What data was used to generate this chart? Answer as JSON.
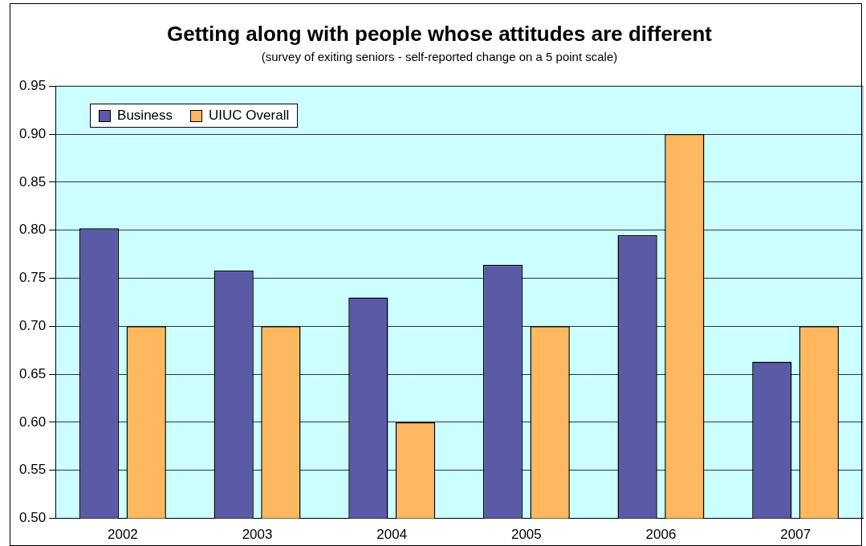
{
  "chart_data": {
    "type": "bar",
    "title": "Getting along with people whose attitudes are different",
    "subtitle": "(survey of exiting seniors - self-reported change on a 5 point scale)",
    "categories": [
      "2002",
      "2003",
      "2004",
      "2005",
      "2006",
      "2007"
    ],
    "series": [
      {
        "name": "Business",
        "color": "#5a5aa6",
        "values": [
          0.802,
          0.758,
          0.73,
          0.764,
          0.795,
          0.663
        ]
      },
      {
        "name": "UIUC Overall",
        "color": "#ffb860",
        "values": [
          0.7,
          0.7,
          0.6,
          0.7,
          0.9,
          0.7
        ]
      }
    ],
    "ylim": [
      0.5,
      0.95
    ],
    "yticks": [
      {
        "value": 0.5,
        "label": "0.50"
      },
      {
        "value": 0.55,
        "label": "0.55"
      },
      {
        "value": 0.6,
        "label": "0.60"
      },
      {
        "value": 0.65,
        "label": "0.65"
      },
      {
        "value": 0.7,
        "label": "0.70"
      },
      {
        "value": 0.75,
        "label": "0.75"
      },
      {
        "value": 0.8,
        "label": "0.80"
      },
      {
        "value": 0.85,
        "label": "0.85"
      },
      {
        "value": 0.9,
        "label": "0.90"
      },
      {
        "value": 0.95,
        "label": "0.95"
      }
    ],
    "grid": "y",
    "legend": "top left"
  }
}
